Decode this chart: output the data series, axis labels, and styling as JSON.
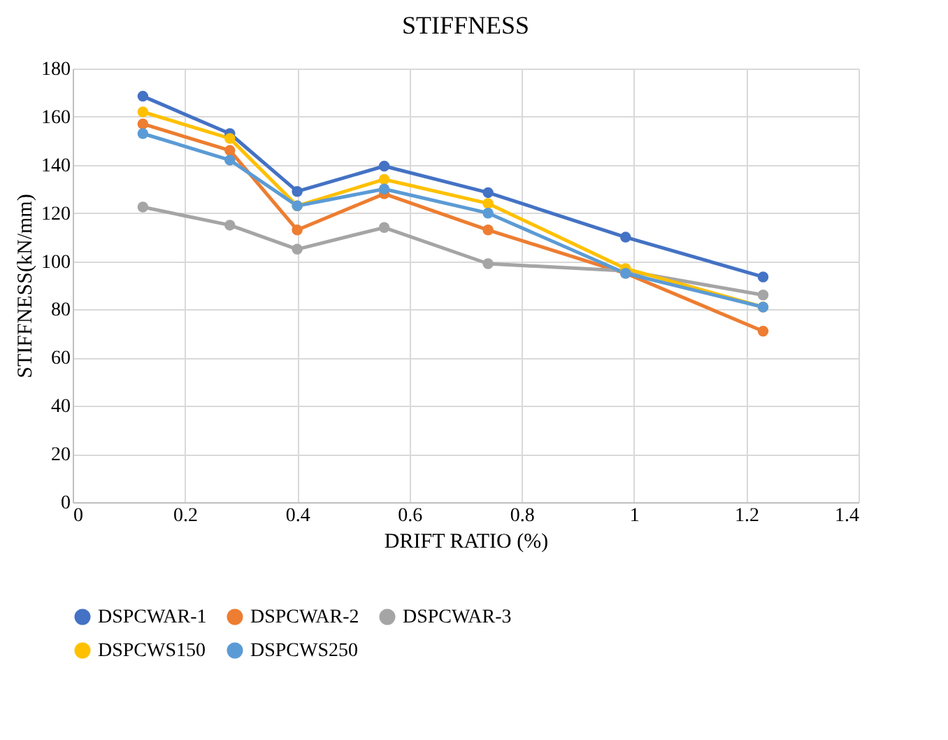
{
  "chart_data": {
    "type": "line",
    "title": "STIFFNESS",
    "xlabel": "DRIFT RATIO (%)",
    "ylabel": "STIFFNESS(kN/mm)",
    "x": [
      0.125,
      0.28,
      0.4,
      0.555,
      0.74,
      0.985,
      1.23
    ],
    "series": [
      {
        "name": "DSPCWAR-1",
        "color": "#4472c4",
        "values": [
          168.5,
          153,
          129,
          139.5,
          128.5,
          110,
          93.5
        ]
      },
      {
        "name": "DSPCWAR-2",
        "color": "#ed7d31",
        "values": [
          157,
          146,
          113,
          128,
          113,
          95,
          71
        ]
      },
      {
        "name": "DSPCWAR-3",
        "color": "#a5a5a5",
        "values": [
          122.5,
          115,
          105,
          114,
          99,
          96,
          86
        ]
      },
      {
        "name": "DSPCWS150",
        "color": "#ffc000",
        "values": [
          162,
          151,
          123,
          134,
          124,
          97,
          81
        ]
      },
      {
        "name": "DSPCWS250",
        "color": "#5b9bd5",
        "values": [
          153,
          142,
          123,
          130,
          120,
          95,
          81
        ]
      }
    ],
    "xlim": [
      0,
      1.4
    ],
    "xticks": [
      0,
      0.2,
      0.4,
      0.6,
      0.8,
      1,
      1.2,
      1.4
    ],
    "ylim": [
      0,
      180
    ],
    "yticks": [
      0,
      20,
      40,
      60,
      80,
      100,
      120,
      140,
      160,
      180
    ],
    "grid": true,
    "legend": "bottom",
    "marker": "circle",
    "line_style": "solid"
  }
}
